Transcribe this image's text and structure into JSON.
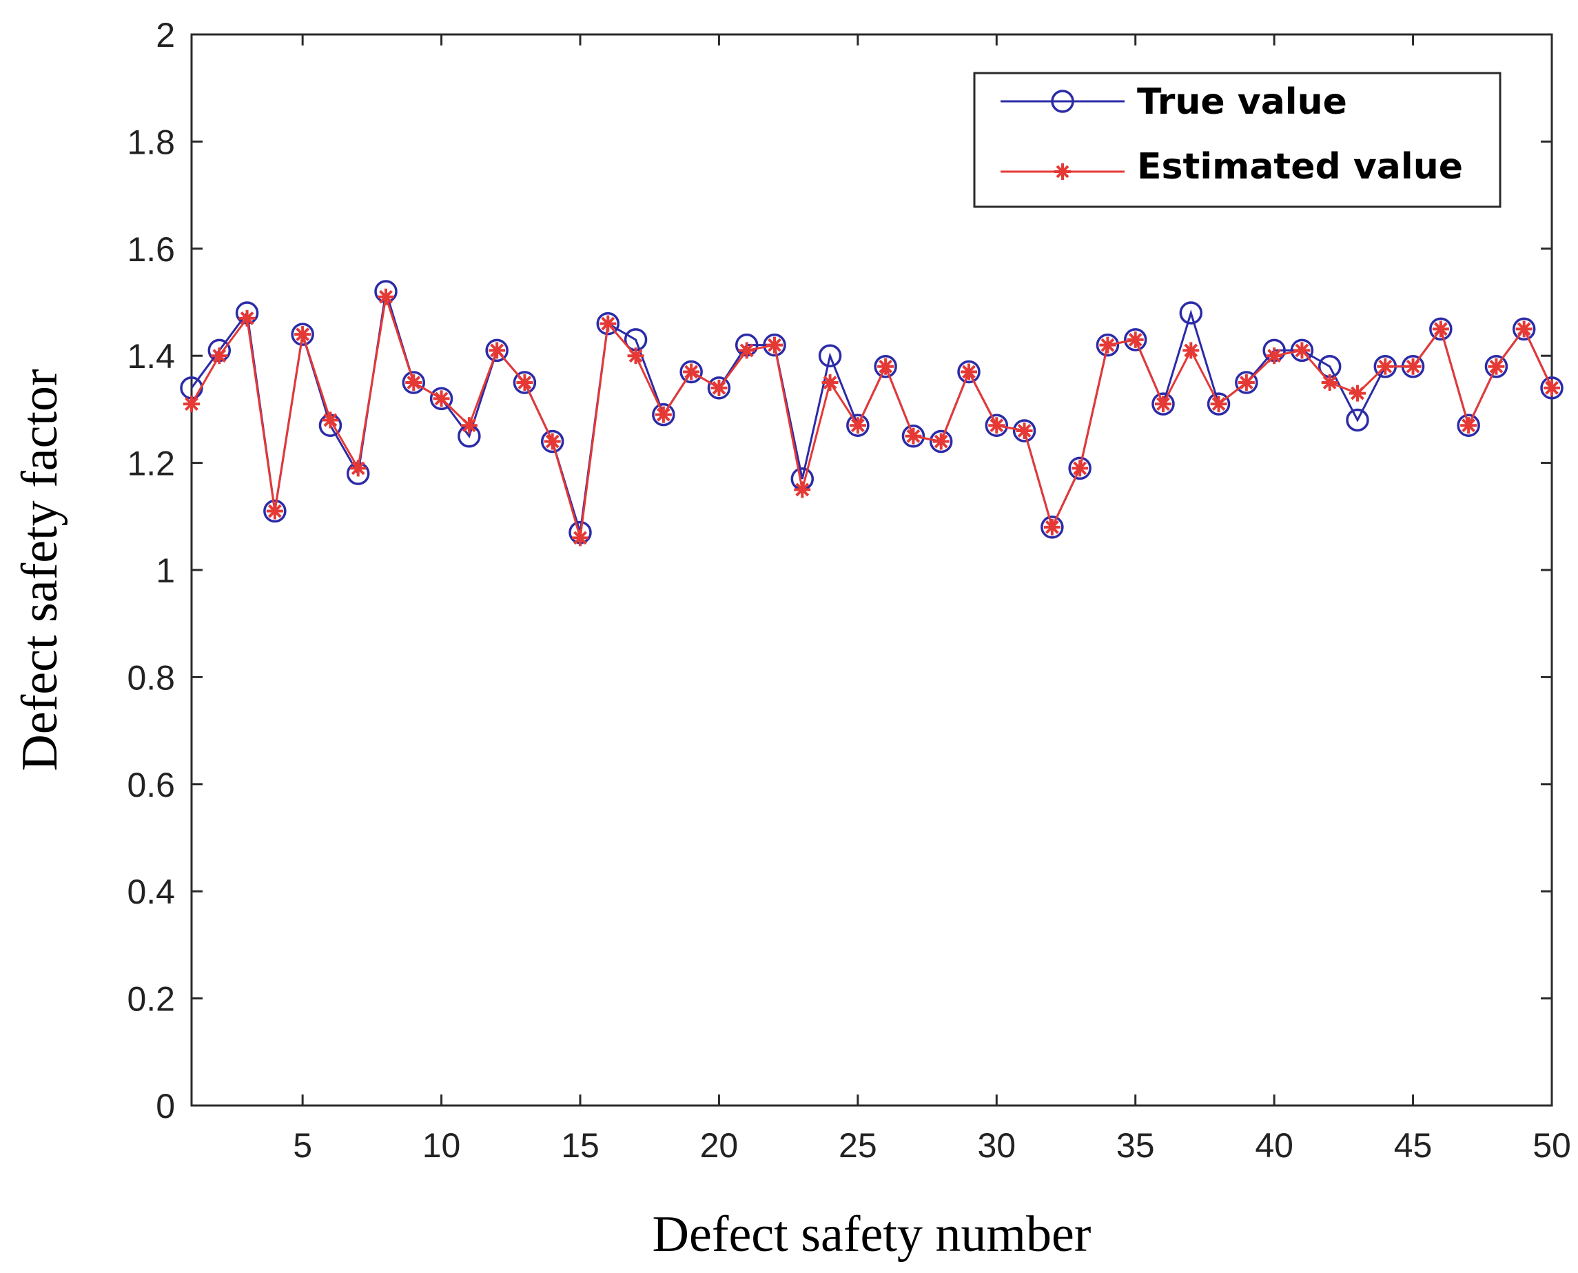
{
  "chart_data": {
    "type": "line",
    "title": "",
    "xlabel": "Defect safety number",
    "ylabel": "Defect safety factor",
    "xlim": [
      1,
      50
    ],
    "ylim": [
      0,
      2
    ],
    "x_ticks": [
      5,
      10,
      15,
      20,
      25,
      30,
      35,
      40,
      45,
      50
    ],
    "y_ticks": [
      0,
      0.2,
      0.4,
      0.6,
      0.8,
      1,
      1.2,
      1.4,
      1.6,
      1.8,
      2
    ],
    "y_tick_labels": [
      "0",
      "0.2",
      "0.4",
      "0.6",
      "0.8",
      "1",
      "1.2",
      "1.4",
      "1.6",
      "1.8",
      "2"
    ],
    "x": [
      1,
      2,
      3,
      4,
      5,
      6,
      7,
      8,
      9,
      10,
      11,
      12,
      13,
      14,
      15,
      16,
      17,
      18,
      19,
      20,
      21,
      22,
      23,
      24,
      25,
      26,
      27,
      28,
      29,
      30,
      31,
      32,
      33,
      34,
      35,
      36,
      37,
      38,
      39,
      40,
      41,
      42,
      43,
      44,
      45,
      46,
      47,
      48,
      49,
      50
    ],
    "series": [
      {
        "name": "True value",
        "color": "#2b2ba8",
        "marker": "circle",
        "values": [
          1.34,
          1.41,
          1.48,
          1.11,
          1.44,
          1.27,
          1.18,
          1.52,
          1.35,
          1.32,
          1.25,
          1.41,
          1.35,
          1.24,
          1.07,
          1.46,
          1.43,
          1.29,
          1.37,
          1.34,
          1.42,
          1.42,
          1.17,
          1.4,
          1.27,
          1.38,
          1.25,
          1.24,
          1.37,
          1.27,
          1.26,
          1.08,
          1.19,
          1.42,
          1.43,
          1.31,
          1.48,
          1.31,
          1.35,
          1.41,
          1.41,
          1.38,
          1.28,
          1.38,
          1.38,
          1.45,
          1.27,
          1.38,
          1.45,
          1.34
        ]
      },
      {
        "name": "Estimated value",
        "color": "#e53935",
        "marker": "asterisk",
        "values": [
          1.31,
          1.4,
          1.47,
          1.11,
          1.44,
          1.28,
          1.19,
          1.51,
          1.35,
          1.32,
          1.27,
          1.41,
          1.35,
          1.24,
          1.06,
          1.46,
          1.4,
          1.29,
          1.37,
          1.34,
          1.41,
          1.42,
          1.15,
          1.35,
          1.27,
          1.38,
          1.25,
          1.24,
          1.37,
          1.27,
          1.26,
          1.08,
          1.19,
          1.42,
          1.43,
          1.31,
          1.41,
          1.31,
          1.35,
          1.4,
          1.41,
          1.35,
          1.33,
          1.38,
          1.38,
          1.45,
          1.27,
          1.38,
          1.45,
          1.34
        ]
      }
    ],
    "grid": false,
    "legend_position": "top-right"
  }
}
